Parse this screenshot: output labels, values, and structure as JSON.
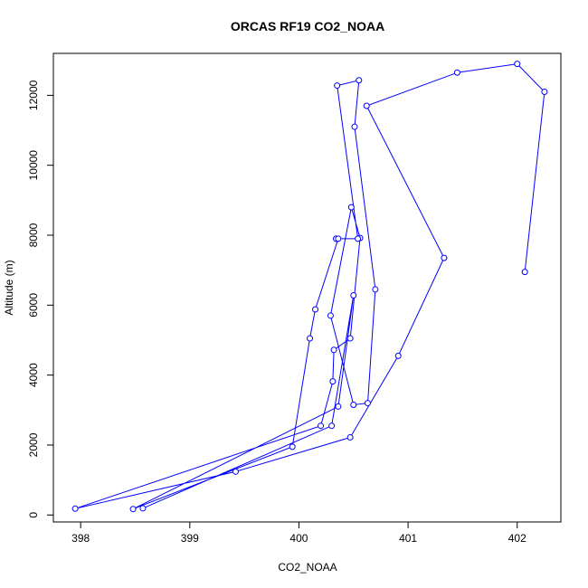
{
  "chart_data": {
    "type": "line",
    "title": "ORCAS RF19 CO2_NOAA",
    "xlabel": "CO2_NOAA",
    "ylabel": "Altitude (m)",
    "xlim": [
      397.75,
      402.4
    ],
    "ylim": [
      -200,
      13200
    ],
    "xticks": [
      398,
      399,
      400,
      401,
      402
    ],
    "yticks": [
      0,
      2000,
      4000,
      6000,
      8000,
      10000,
      12000
    ],
    "grid": false,
    "line_color": "#0000ff",
    "marker": "open-circle",
    "series": [
      {
        "x": [
          402.07,
          402.25,
          402.0,
          401.45,
          400.62,
          401.33,
          400.91,
          400.47,
          399.42,
          397.95,
          400.2,
          400.31,
          400.32,
          400.47,
          400.56,
          400.48,
          400.29,
          400.5,
          400.63,
          400.7,
          400.51,
          400.55,
          400.35,
          400.54,
          400.34,
          400.36,
          400.15,
          400.1,
          399.94,
          398.48,
          400.36,
          400.5,
          400.3,
          398.57
        ],
        "y": [
          6950,
          12100,
          12900,
          12650,
          11700,
          7350,
          4550,
          2220,
          1240,
          180,
          2550,
          3820,
          4720,
          5050,
          7920,
          8800,
          5700,
          3150,
          3200,
          6450,
          11100,
          12430,
          12280,
          7900,
          7900,
          7900,
          5880,
          5050,
          1950,
          170,
          3100,
          6280,
          2550,
          190
        ]
      }
    ]
  }
}
